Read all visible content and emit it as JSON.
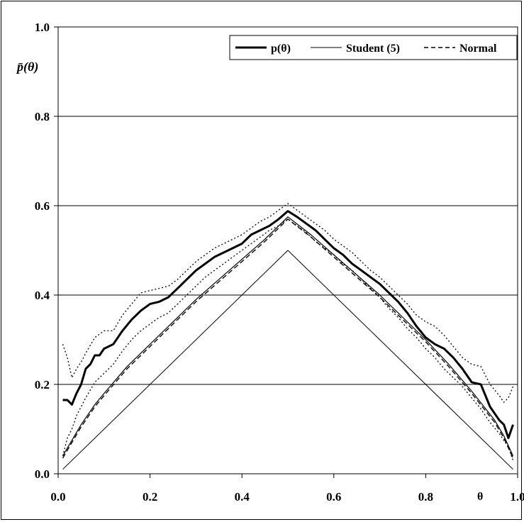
{
  "chart_data": {
    "type": "line",
    "title": "",
    "xlabel": "θ",
    "ylabel": "p̄(θ)",
    "xlim": [
      0.0,
      1.0
    ],
    "ylim": [
      0.0,
      1.0
    ],
    "xticks": [
      "0.0",
      "0.2",
      "0.4",
      "0.6",
      "0.8",
      "1.0"
    ],
    "yticks": [
      "0.0",
      "0.2",
      "0.4",
      "0.6",
      "0.8",
      "1.0"
    ],
    "grid": "horizontal",
    "legend_position": "top-right",
    "series": [
      {
        "name": "p(θ)",
        "style": "thick-solid",
        "x": [
          0.01,
          0.02,
          0.03,
          0.04,
          0.05,
          0.06,
          0.07,
          0.08,
          0.09,
          0.1,
          0.12,
          0.14,
          0.16,
          0.18,
          0.2,
          0.22,
          0.24,
          0.26,
          0.28,
          0.3,
          0.32,
          0.34,
          0.36,
          0.38,
          0.4,
          0.42,
          0.44,
          0.46,
          0.48,
          0.5,
          0.52,
          0.54,
          0.56,
          0.58,
          0.6,
          0.62,
          0.64,
          0.66,
          0.68,
          0.7,
          0.72,
          0.74,
          0.76,
          0.78,
          0.8,
          0.82,
          0.84,
          0.86,
          0.88,
          0.9,
          0.92,
          0.94,
          0.96,
          0.97,
          0.98,
          0.99
        ],
        "y": [
          0.165,
          0.165,
          0.155,
          0.18,
          0.2,
          0.235,
          0.245,
          0.265,
          0.265,
          0.28,
          0.29,
          0.32,
          0.345,
          0.365,
          0.38,
          0.385,
          0.395,
          0.415,
          0.435,
          0.455,
          0.47,
          0.485,
          0.495,
          0.505,
          0.515,
          0.535,
          0.545,
          0.555,
          0.57,
          0.588,
          0.575,
          0.56,
          0.545,
          0.525,
          0.505,
          0.49,
          0.47,
          0.455,
          0.44,
          0.425,
          0.405,
          0.385,
          0.36,
          0.33,
          0.305,
          0.29,
          0.28,
          0.26,
          0.235,
          0.205,
          0.2,
          0.15,
          0.12,
          0.11,
          0.08,
          0.11
        ]
      },
      {
        "name": "",
        "style": "dotted-upper",
        "x": [
          0.01,
          0.02,
          0.03,
          0.04,
          0.05,
          0.06,
          0.08,
          0.1,
          0.12,
          0.14,
          0.16,
          0.18,
          0.2,
          0.22,
          0.24,
          0.26,
          0.28,
          0.3,
          0.32,
          0.34,
          0.36,
          0.38,
          0.4,
          0.42,
          0.44,
          0.46,
          0.48,
          0.5,
          0.52,
          0.54,
          0.56,
          0.58,
          0.6,
          0.62,
          0.64,
          0.66,
          0.68,
          0.7,
          0.72,
          0.74,
          0.76,
          0.78,
          0.8,
          0.82,
          0.84,
          0.86,
          0.88,
          0.9,
          0.92,
          0.94,
          0.96,
          0.97,
          0.98,
          0.99
        ],
        "y": [
          0.29,
          0.26,
          0.215,
          0.235,
          0.25,
          0.27,
          0.305,
          0.32,
          0.32,
          0.355,
          0.38,
          0.405,
          0.41,
          0.415,
          0.42,
          0.435,
          0.455,
          0.475,
          0.49,
          0.505,
          0.515,
          0.525,
          0.535,
          0.55,
          0.565,
          0.575,
          0.59,
          0.605,
          0.59,
          0.575,
          0.56,
          0.545,
          0.525,
          0.51,
          0.495,
          0.475,
          0.455,
          0.44,
          0.42,
          0.4,
          0.38,
          0.355,
          0.34,
          0.33,
          0.31,
          0.285,
          0.26,
          0.245,
          0.24,
          0.2,
          0.175,
          0.16,
          0.17,
          0.195
        ]
      },
      {
        "name": "",
        "style": "dotted-lower",
        "x": [
          0.01,
          0.02,
          0.03,
          0.04,
          0.05,
          0.06,
          0.08,
          0.1,
          0.12,
          0.14,
          0.16,
          0.18,
          0.2,
          0.22,
          0.24,
          0.26,
          0.28,
          0.3,
          0.32,
          0.34,
          0.36,
          0.38,
          0.4,
          0.42,
          0.44,
          0.46,
          0.48,
          0.5,
          0.52,
          0.54,
          0.56,
          0.58,
          0.6,
          0.62,
          0.64,
          0.66,
          0.68,
          0.7,
          0.72,
          0.74,
          0.76,
          0.78,
          0.8,
          0.82,
          0.84,
          0.86,
          0.88,
          0.9,
          0.92,
          0.94,
          0.96,
          0.98,
          0.99
        ],
        "y": [
          0.04,
          0.08,
          0.1,
          0.13,
          0.15,
          0.17,
          0.205,
          0.225,
          0.245,
          0.275,
          0.3,
          0.32,
          0.335,
          0.35,
          0.36,
          0.38,
          0.4,
          0.42,
          0.44,
          0.455,
          0.47,
          0.485,
          0.5,
          0.515,
          0.53,
          0.545,
          0.555,
          0.57,
          0.555,
          0.54,
          0.52,
          0.505,
          0.49,
          0.47,
          0.455,
          0.435,
          0.415,
          0.395,
          0.37,
          0.35,
          0.325,
          0.305,
          0.28,
          0.26,
          0.235,
          0.215,
          0.195,
          0.17,
          0.145,
          0.115,
          0.09,
          0.06,
          0.03
        ]
      },
      {
        "name": "Student (5)",
        "style": "thin-solid",
        "x": [
          0.01,
          0.5,
          0.99
        ],
        "y": [
          0.01,
          0.5,
          0.01
        ]
      },
      {
        "name": "",
        "style": "medium-solid",
        "x": [
          0.01,
          0.03,
          0.05,
          0.08,
          0.1,
          0.15,
          0.2,
          0.25,
          0.3,
          0.35,
          0.4,
          0.45,
          0.5,
          0.55,
          0.6,
          0.65,
          0.7,
          0.75,
          0.8,
          0.85,
          0.9,
          0.95,
          0.97,
          0.99
        ],
        "y": [
          0.04,
          0.075,
          0.11,
          0.155,
          0.18,
          0.24,
          0.29,
          0.34,
          0.39,
          0.435,
          0.48,
          0.525,
          0.575,
          0.535,
          0.49,
          0.445,
          0.4,
          0.35,
          0.3,
          0.245,
          0.185,
          0.12,
          0.085,
          0.04
        ]
      },
      {
        "name": "Normal",
        "style": "dashed",
        "x": [
          0.01,
          0.03,
          0.05,
          0.08,
          0.1,
          0.15,
          0.2,
          0.25,
          0.3,
          0.35,
          0.4,
          0.45,
          0.5,
          0.55,
          0.6,
          0.65,
          0.7,
          0.75,
          0.8,
          0.85,
          0.9,
          0.95,
          0.97,
          0.99
        ],
        "y": [
          0.035,
          0.07,
          0.105,
          0.15,
          0.175,
          0.235,
          0.285,
          0.335,
          0.385,
          0.43,
          0.475,
          0.52,
          0.57,
          0.53,
          0.485,
          0.44,
          0.395,
          0.345,
          0.295,
          0.24,
          0.18,
          0.115,
          0.08,
          0.035
        ]
      }
    ]
  }
}
